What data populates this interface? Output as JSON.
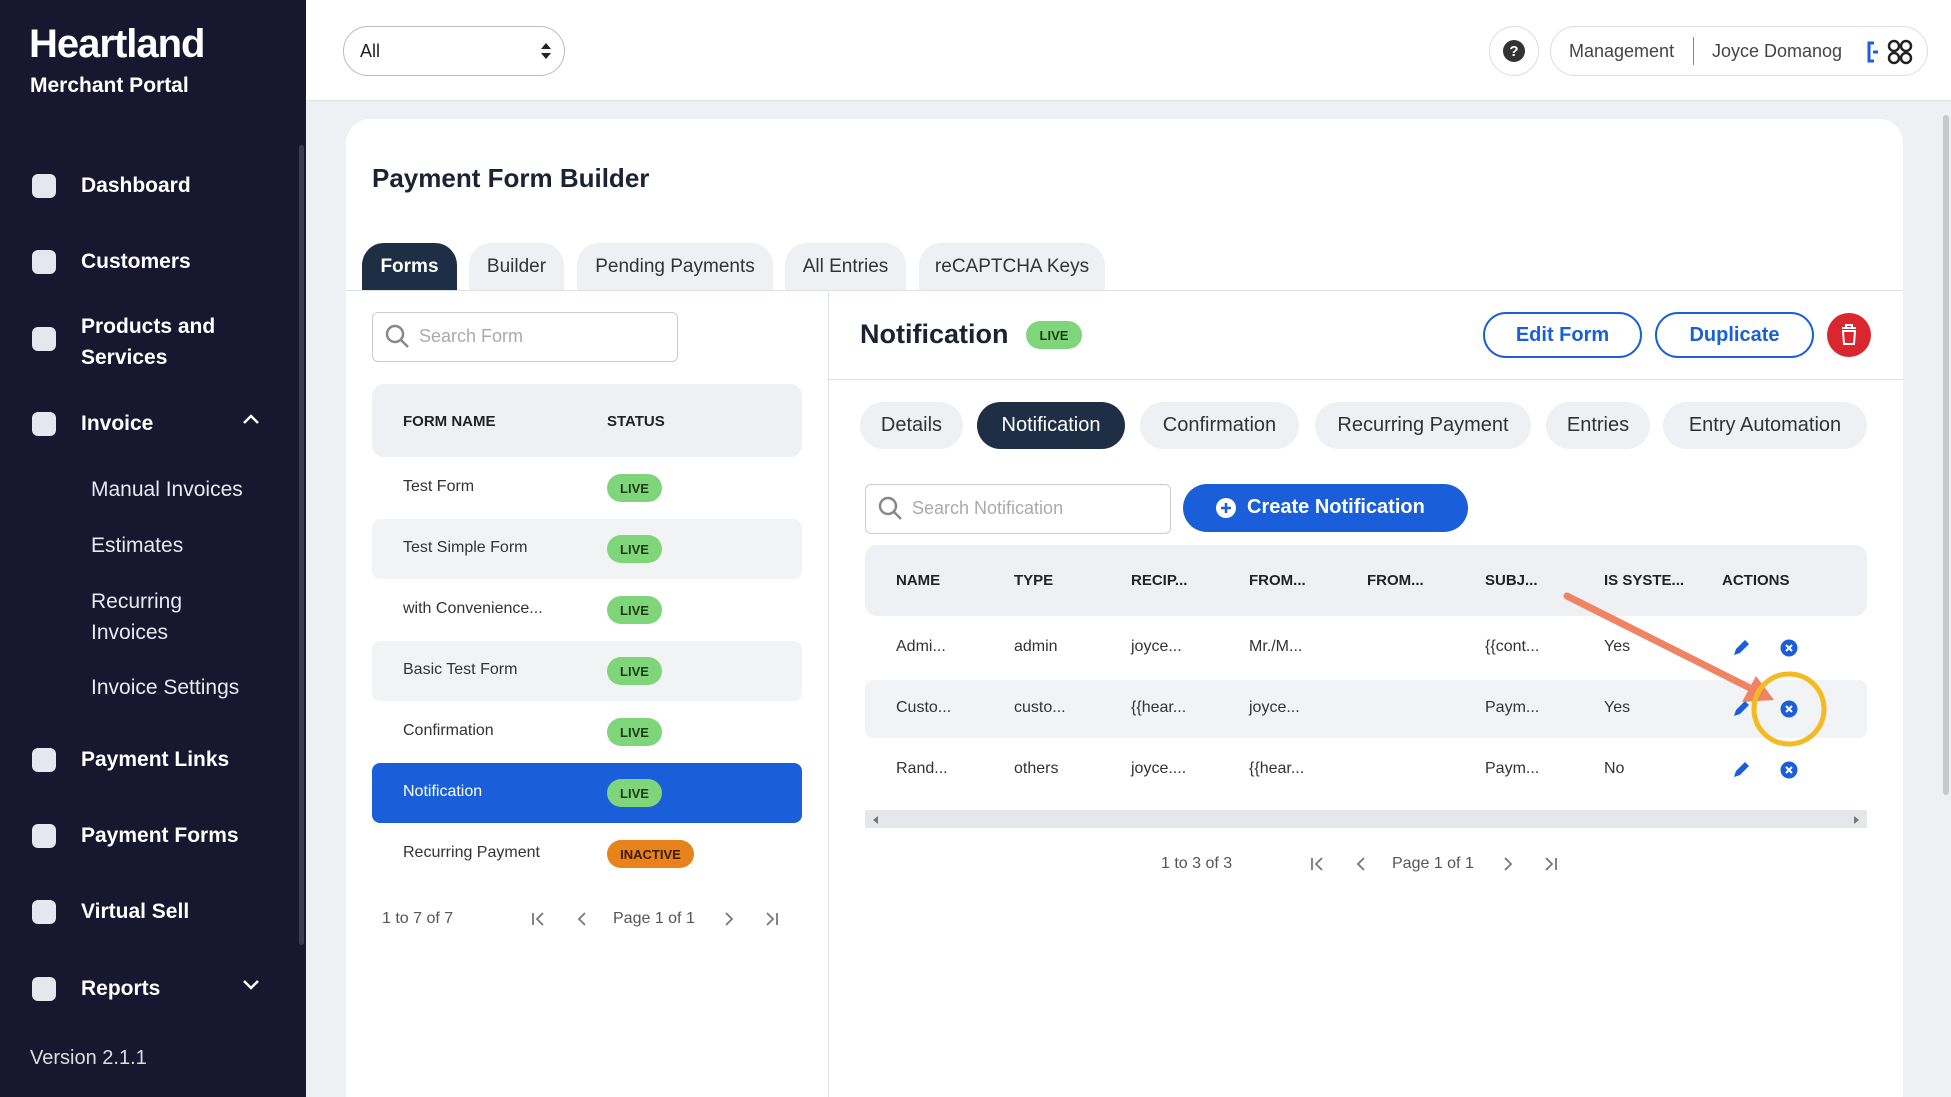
{
  "sidebar": {
    "brand": "Heartland",
    "subtitle": "Merchant Portal",
    "nav": [
      {
        "label": "Dashboard"
      },
      {
        "label": "Customers"
      },
      {
        "label": "Products and Services"
      },
      {
        "label": "Invoice",
        "children": [
          "Manual Invoices",
          "Estimates",
          "Recurring Invoices",
          "Invoice Settings"
        ]
      },
      {
        "label": "Payment Links"
      },
      {
        "label": "Payment Forms"
      },
      {
        "label": "Virtual Sell"
      },
      {
        "label": "Reports"
      }
    ],
    "version": "Version 2.1.1"
  },
  "topbar": {
    "filter": "All",
    "role": "Management",
    "user": "Joyce Domanog"
  },
  "page": {
    "title": "Payment Form Builder",
    "tabs": [
      "Forms",
      "Builder",
      "Pending Payments",
      "All Entries",
      "reCAPTCHA Keys"
    ],
    "forms": {
      "search_placeholder": "Search Form",
      "headers": [
        "FORM NAME",
        "STATUS"
      ],
      "rows": [
        [
          "Test Form",
          "LIVE"
        ],
        [
          "Test Simple Form",
          "LIVE"
        ],
        [
          "with Convenience...",
          "LIVE"
        ],
        [
          "Basic Test Form",
          "LIVE"
        ],
        [
          "Confirmation",
          "LIVE"
        ],
        [
          "Notification",
          "LIVE"
        ],
        [
          "Recurring Payment",
          "INACTIVE"
        ]
      ],
      "pager": {
        "range": "1 to 7 of 7",
        "page": "Page 1 of 1"
      }
    },
    "detail": {
      "title": "Notification",
      "status": "LIVE",
      "buttons": [
        "Edit Form",
        "Duplicate"
      ],
      "tabs": [
        "Details",
        "Notification",
        "Confirmation",
        "Recurring Payment",
        "Entries",
        "Entry Automation"
      ],
      "search_placeholder": "Search Notification",
      "create_button": "Create Notification",
      "headers": [
        "NAME",
        "TYPE",
        "RECIP...",
        "FROM...",
        "FROM...",
        "SUBJ...",
        "IS SYSTE...",
        "ACTIONS"
      ],
      "rows": [
        [
          "Admi...",
          "admin",
          "joyce...",
          "Mr./M...",
          "",
          "{{cont...",
          "Yes"
        ],
        [
          "Custo...",
          "custo...",
          "{{hear...",
          "joyce...",
          "",
          "Paym...",
          "Yes"
        ],
        [
          "Rand...",
          "others",
          "joyce....",
          "{{hear...",
          "",
          "Paym...",
          "No"
        ]
      ],
      "pager": {
        "range": "1 to 3 of 3",
        "page": "Page 1 of 1"
      }
    }
  }
}
